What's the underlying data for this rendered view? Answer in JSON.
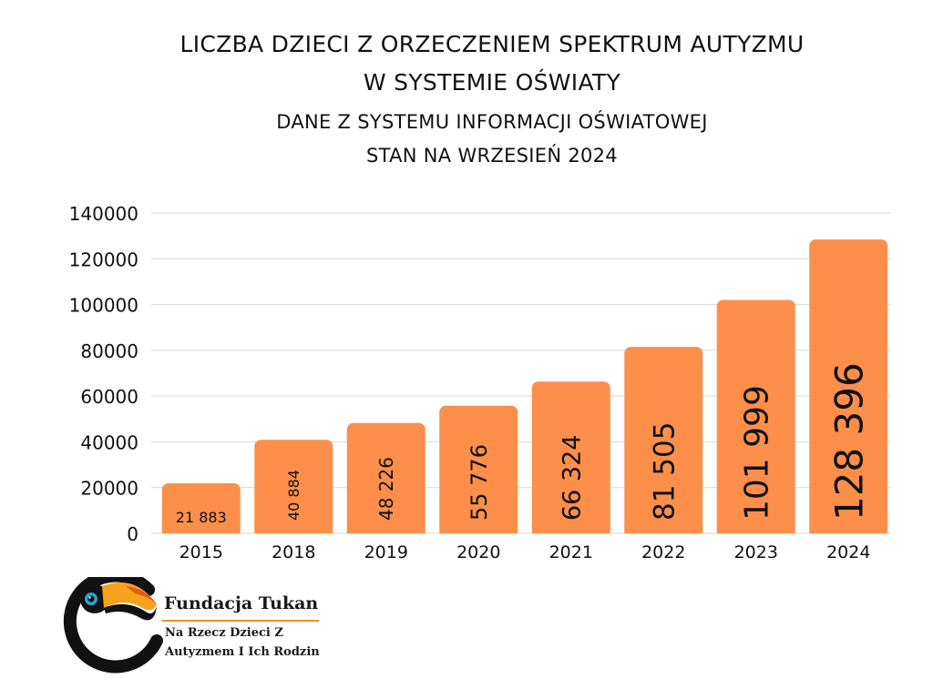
{
  "header": {
    "title_line1": "LICZBA DZIECI Z ORZECZENIEM SPEKTRUM AUTYZMU",
    "title_line2": "W SYSTEMIE OŚWIATY",
    "subtitle_line1": "DANE Z SYSTEMU INFORMACJI OŚWIATOWEJ",
    "subtitle_line2": "STAN NA WRZESIEŃ 2024"
  },
  "chart_data": {
    "type": "bar",
    "categories": [
      "2015",
      "2018",
      "2019",
      "2020",
      "2021",
      "2022",
      "2023",
      "2024"
    ],
    "values": [
      21883,
      40884,
      48226,
      55776,
      66324,
      81505,
      101999,
      128396
    ],
    "data_labels": [
      "21 883",
      "40 884",
      "48 226",
      "55 776",
      "66 324",
      "81 505",
      "101 999",
      "128 396"
    ],
    "yticks": [
      "0",
      "20000",
      "40000",
      "60000",
      "80000",
      "100000",
      "120000",
      "140000"
    ],
    "ylim": [
      0,
      140000
    ],
    "grid": true,
    "bar_color": "#fd8f4b",
    "gridline_color": "#d9d9d9"
  },
  "brand": {
    "name": "Fundacja Tukan",
    "tagline_line1": "Na Rzecz Dzieci Z",
    "tagline_line2": "Autyzmem I Ich Rodzin",
    "accent_color": "#f28c28"
  }
}
